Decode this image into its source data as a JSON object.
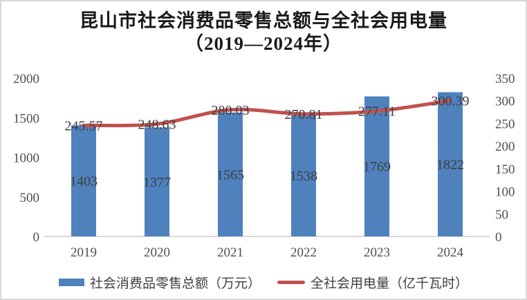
{
  "header": {
    "title_line1": "昆山市社会消费品零售总额与全社会用电量",
    "title_line2": "（2019—2024年）"
  },
  "chart_data": {
    "type": "bar+line combo",
    "title": "昆山市社会消费品零售总额与全社会用电量（2019—2024年）",
    "categories": [
      "2019",
      "2020",
      "2021",
      "2022",
      "2023",
      "2024"
    ],
    "series": [
      {
        "name": "社会消费品零售总额（万元）",
        "type": "bar",
        "axis": "left",
        "color": "#4F81BD",
        "values": [
          1403,
          1377,
          1565,
          1538,
          1769,
          1822
        ],
        "label_format": "integer"
      },
      {
        "name": "全社会用电量（亿千瓦时）",
        "type": "line",
        "axis": "right",
        "color": "#C0504D",
        "values": [
          245.57,
          248.63,
          280.03,
          270.81,
          277.11,
          300.39
        ],
        "label_format": "2dp"
      }
    ],
    "left_axis": {
      "min": 0,
      "max": 2000,
      "ticks": [
        0,
        500,
        1000,
        1500,
        2000
      ]
    },
    "right_axis": {
      "min": 0,
      "max": 350,
      "ticks": [
        0,
        50,
        100,
        150,
        200,
        250,
        300,
        350
      ]
    },
    "grid": false,
    "data_labels": true,
    "legend_position": "bottom"
  }
}
